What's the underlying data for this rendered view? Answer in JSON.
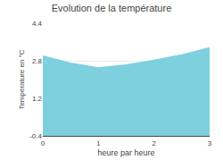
{
  "chart_data": {
    "type": "area",
    "title": "Evolution de la température",
    "x_label": "heure par heure",
    "y_label": "Température en °C",
    "x": [
      0,
      0.5,
      1.0,
      1.5,
      2.0,
      2.5,
      3.0
    ],
    "values": [
      3.0,
      2.7,
      2.5,
      2.62,
      2.82,
      3.05,
      3.35
    ],
    "color": "#7fd0de",
    "xlim": [
      0,
      3
    ],
    "ylim": [
      -0.4,
      4.4
    ],
    "xticks": [
      0,
      1,
      2,
      3
    ],
    "yticks": [
      -0.4,
      1.2,
      2.8,
      4.4
    ],
    "grid": true
  }
}
